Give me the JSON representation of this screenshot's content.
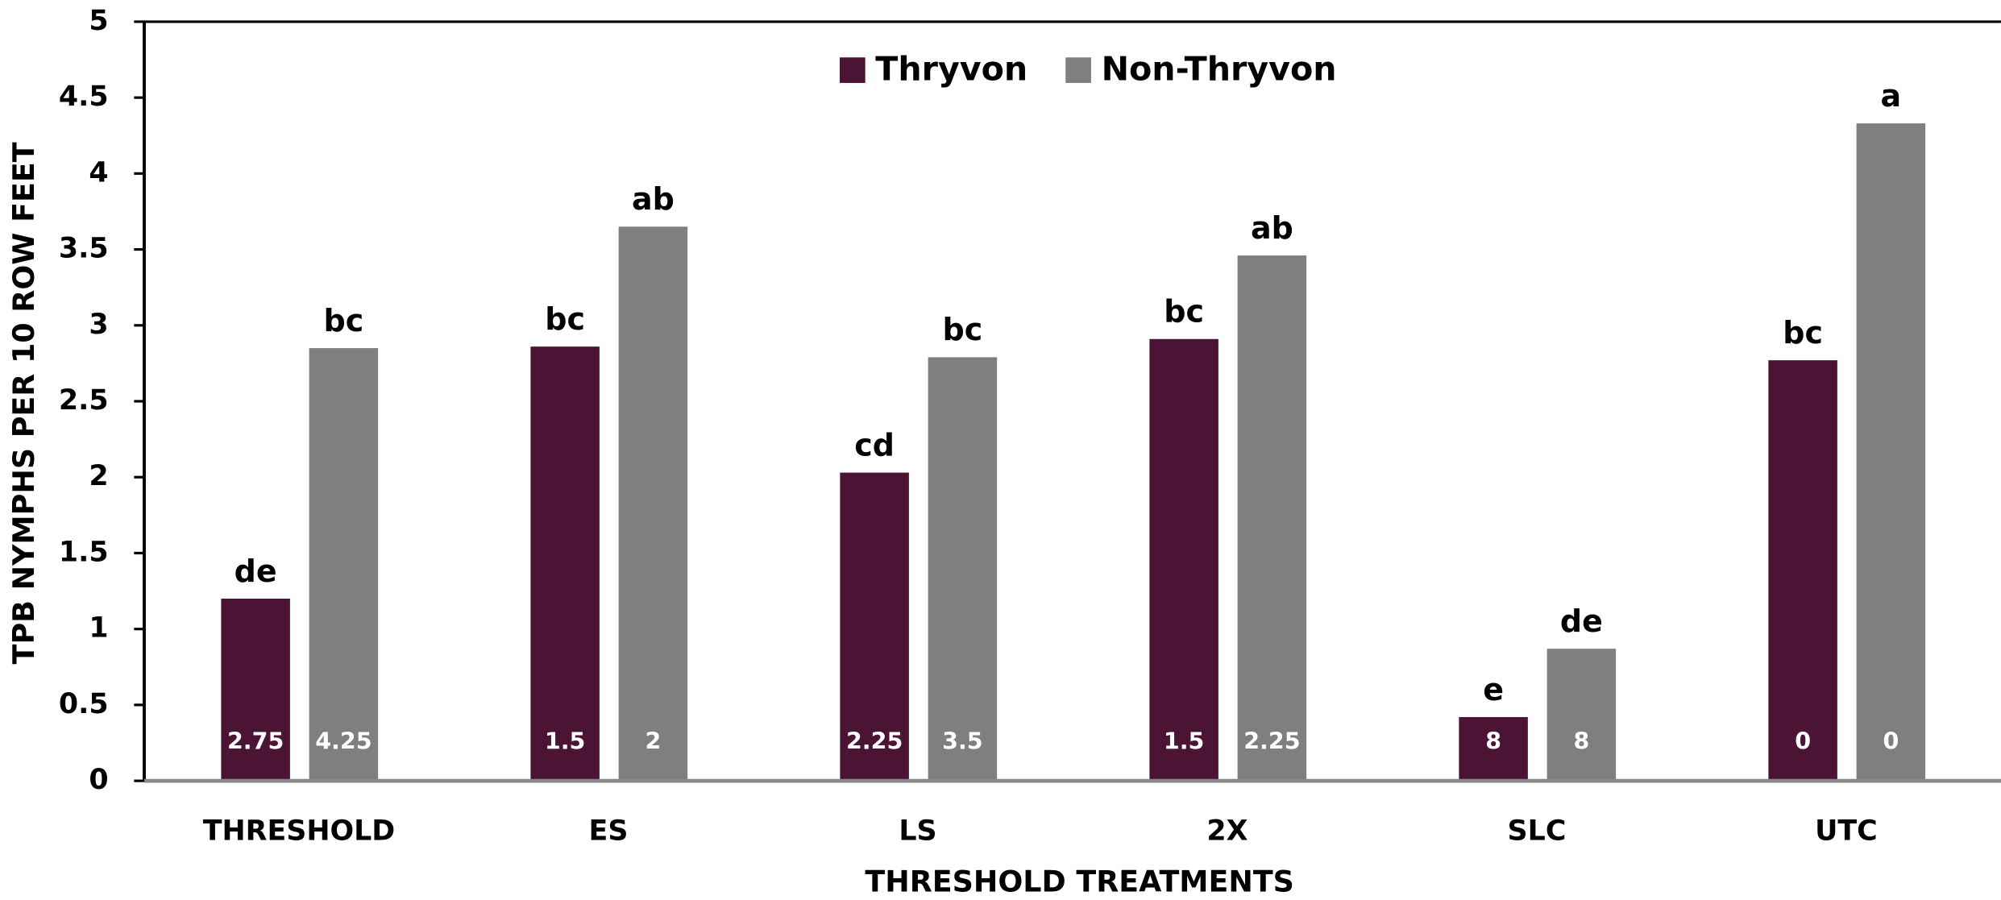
{
  "chart_data": {
    "type": "bar",
    "x_label": "THRESHOLD TREATMENTS",
    "y_label": "TPB NYMPHS PER 10 ROW FEET",
    "categories": [
      "THRESHOLD",
      "ES",
      "LS",
      "2X",
      "SLC",
      "UTC"
    ],
    "series": [
      {
        "name": "Thryvon",
        "color": "#4b1434",
        "values": [
          1.2,
          2.86,
          2.03,
          2.91,
          0.42,
          2.77
        ],
        "letters": [
          "de",
          "bc",
          "cd",
          "bc",
          "e",
          "bc"
        ],
        "bar_labels": [
          2.75,
          1.5,
          2.25,
          1.5,
          8,
          0
        ]
      },
      {
        "name": "Non-Thryvon",
        "color": "#7f7f7f",
        "values": [
          2.85,
          3.65,
          2.79,
          3.46,
          0.87,
          4.33
        ],
        "letters": [
          "bc",
          "ab",
          "bc",
          "ab",
          "de",
          "a"
        ],
        "bar_labels": [
          4.25,
          2,
          3.5,
          2.25,
          8,
          0
        ]
      }
    ],
    "ylim": [
      0,
      5
    ],
    "yticks": [
      0,
      0.5,
      1,
      1.5,
      2,
      2.5,
      3,
      3.5,
      4,
      4.5,
      5
    ],
    "legend": "top"
  }
}
